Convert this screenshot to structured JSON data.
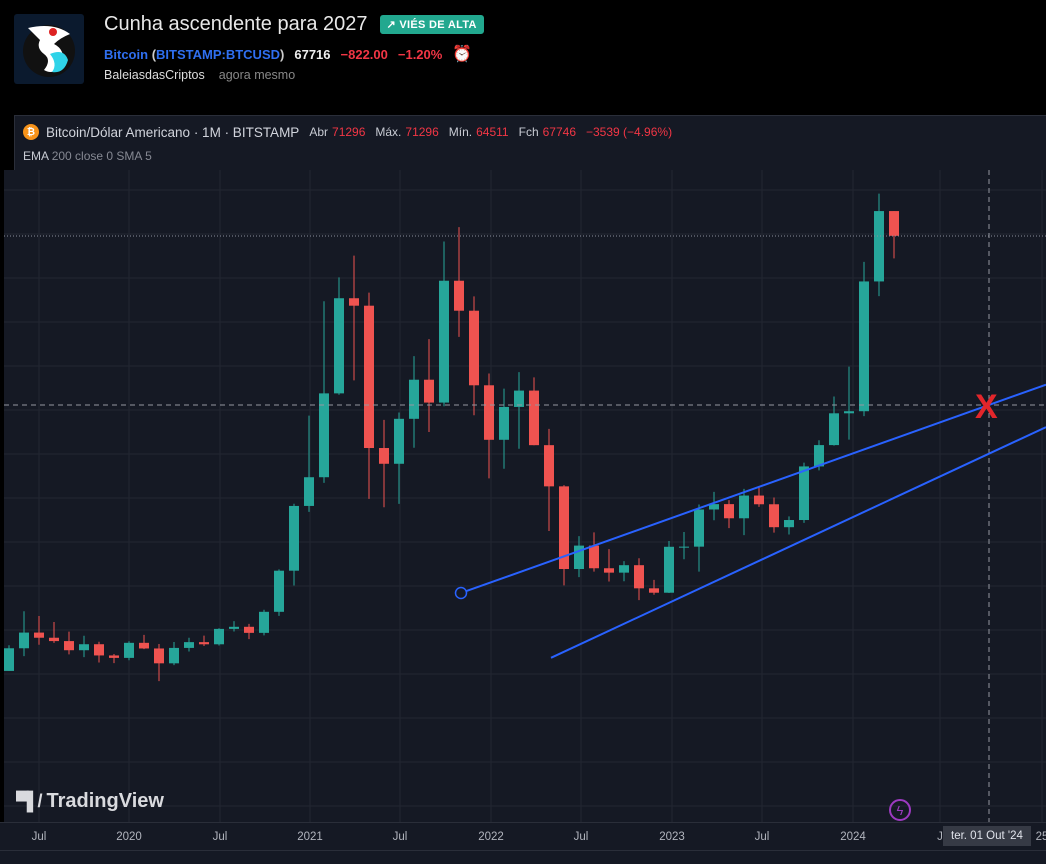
{
  "idea": {
    "title": "Cunha ascendente para 2027",
    "badge": "↗ VIÉS DE ALTA",
    "symbol_name": "Bitcoin",
    "symbol_open": "(",
    "symbol_code": "BITSTAMP:BTCUSD",
    "symbol_close": ")",
    "price": "67716",
    "change": "−822.00",
    "change_pct": "−1.20%",
    "author": "BaleiasdasCriptos",
    "time": "agora mesmo"
  },
  "legend": {
    "title": "Bitcoin/Dólar Americano · 1M · BITSTAMP",
    "open_label": "Abr",
    "open": "71296",
    "high_label": "Máx.",
    "high": "71296",
    "low_label": "Mín.",
    "low": "64511",
    "close_label": "Fch",
    "close": "67746",
    "change": "−3539 (−4.96%)",
    "indicator_name": "EMA",
    "indicator_params": "200 close 0 SMA 5"
  },
  "branding": "TradingView",
  "time_axis": {
    "ticks": [
      "Jul",
      "2020",
      "Jul",
      "2021",
      "Jul",
      "2022",
      "Jul",
      "2023",
      "Jul",
      "2024",
      "J",
      "25"
    ],
    "crosshair_label": "ter. 01 Out '24"
  },
  "annotation": "X",
  "colors": {
    "up": "#26a69a",
    "down": "#ef5350",
    "line": "#2962ff",
    "background": "#151924",
    "badge": "#22a88f"
  },
  "chart_data": {
    "type": "candlestick",
    "interval": "1M",
    "scale": "linear",
    "start": "2019-05",
    "last_price": 67716,
    "crosshair": {
      "date": "2024-10",
      "price": 43480
    },
    "ohlc": [
      [
        5320,
        9000,
        5330,
        8570
      ],
      [
        8570,
        13880,
        7450,
        10820
      ],
      [
        10820,
        13200,
        9080,
        10080
      ],
      [
        10080,
        12330,
        9350,
        9600
      ],
      [
        9600,
        10950,
        7700,
        8290
      ],
      [
        8290,
        10370,
        7300,
        9150
      ],
      [
        9150,
        9510,
        6520,
        7540
      ],
      [
        7540,
        7750,
        6430,
        7190
      ],
      [
        7190,
        9580,
        6850,
        9350
      ],
      [
        9350,
        10500,
        8450,
        8540
      ],
      [
        8540,
        9190,
        3850,
        6410
      ],
      [
        6410,
        9470,
        6150,
        8620
      ],
      [
        8620,
        10080,
        8100,
        9450
      ],
      [
        9450,
        10380,
        8900,
        9140
      ],
      [
        9140,
        11450,
        8970,
        11350
      ],
      [
        11350,
        12470,
        10980,
        11650
      ],
      [
        11650,
        12070,
        9880,
        10780
      ],
      [
        10780,
        14100,
        10420,
        13800
      ],
      [
        13800,
        19880,
        13210,
        19700
      ],
      [
        19700,
        29300,
        17580,
        28990
      ],
      [
        28990,
        41950,
        28130,
        33110
      ],
      [
        33110,
        58350,
        32300,
        45140
      ],
      [
        45140,
        61790,
        44950,
        58790
      ],
      [
        58790,
        64900,
        47000,
        57720
      ],
      [
        57720,
        59590,
        30000,
        37300
      ],
      [
        37300,
        41330,
        28800,
        35040
      ],
      [
        35040,
        42400,
        29280,
        41490
      ],
      [
        41490,
        50480,
        37330,
        47100
      ],
      [
        47100,
        52920,
        39600,
        43820
      ],
      [
        43820,
        66930,
        43290,
        61300
      ],
      [
        61300,
        69000,
        53250,
        57000
      ],
      [
        57000,
        59050,
        42000,
        46300
      ],
      [
        46300,
        47990,
        32950,
        38480
      ],
      [
        38480,
        45820,
        34320,
        43190
      ],
      [
        43190,
        48190,
        37190,
        45540
      ],
      [
        45540,
        47440,
        37700,
        37710
      ],
      [
        37710,
        40050,
        25400,
        31800
      ],
      [
        31800,
        31980,
        17600,
        19940
      ],
      [
        19940,
        24660,
        18780,
        23300
      ],
      [
        23300,
        25200,
        19560,
        20050
      ],
      [
        20050,
        22800,
        18150,
        19420
      ],
      [
        19420,
        21080,
        18190,
        20490
      ],
      [
        20490,
        21480,
        15480,
        17170
      ],
      [
        17170,
        18390,
        16250,
        16540
      ],
      [
        16540,
        23960,
        16500,
        23130
      ],
      [
        23130,
        25250,
        21350,
        23150
      ],
      [
        23150,
        29190,
        19570,
        28480
      ],
      [
        28480,
        31000,
        26940,
        29250
      ],
      [
        29250,
        29820,
        25810,
        27220
      ],
      [
        27220,
        31430,
        24800,
        30480
      ],
      [
        30480,
        31800,
        28860,
        29230
      ],
      [
        29230,
        30200,
        25170,
        25940
      ],
      [
        25940,
        27490,
        24900,
        26970
      ],
      [
        26970,
        35200,
        26560,
        34660
      ],
      [
        34660,
        38420,
        34100,
        37720
      ],
      [
        37720,
        44700,
        37640,
        42280
      ],
      [
        42280,
        48970,
        38500,
        42580
      ],
      [
        42580,
        64000,
        41880,
        61200
      ],
      [
        61200,
        73800,
        59100,
        71296
      ],
      [
        71296,
        71296,
        64511,
        67746
      ]
    ],
    "trendlines": [
      {
        "from": {
          "date": "2021-11",
          "price": 16500
        },
        "to": {
          "date": "2024-10",
          "price": 43480
        },
        "extend": "right",
        "anchor": "start"
      },
      {
        "from": {
          "date": "2022-05",
          "price": 7200
        },
        "to": {
          "date": "2025-02",
          "price": 40500
        }
      }
    ]
  }
}
